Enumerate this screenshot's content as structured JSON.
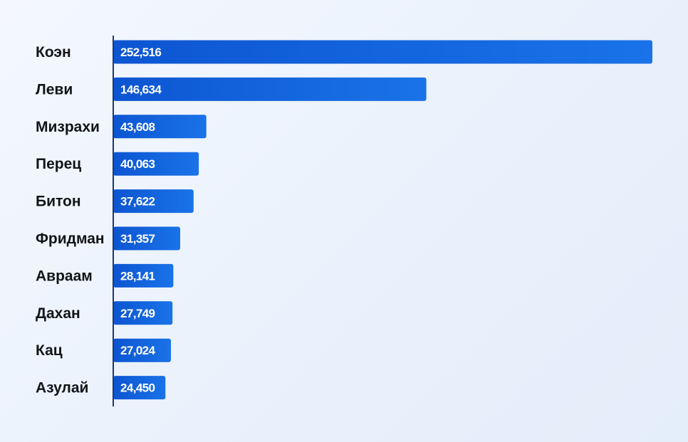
{
  "chart_data": {
    "type": "bar",
    "orientation": "horizontal",
    "title": "",
    "xlabel": "",
    "ylabel": "",
    "categories": [
      "Коэн",
      "Леви",
      "Мизрахи",
      "Перец",
      "Битон",
      "Фридман",
      "Авраам",
      "Дахан",
      "Кац",
      "Азулай"
    ],
    "values": [
      252516,
      146634,
      43608,
      40063,
      37622,
      31357,
      28141,
      27749,
      27024,
      24450
    ],
    "value_labels": [
      "252,516",
      "146,634",
      "43,608",
      "40,063",
      "37,622",
      "31,357",
      "28,141",
      "27,749",
      "27,024",
      "24,450"
    ],
    "xlim": [
      0,
      252516
    ],
    "grid": false,
    "legend": "none",
    "colors": {
      "bar_start": "#0d55d2",
      "bar_end": "#1a73e8",
      "axis": "#1d3a6b",
      "label": "#111418",
      "value_text": "#ffffff"
    }
  }
}
